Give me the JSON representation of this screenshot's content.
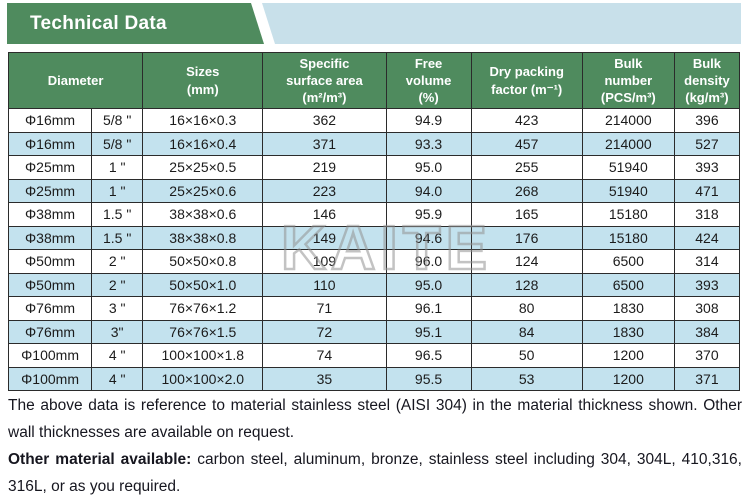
{
  "banner": {
    "title": "Technical Data"
  },
  "colors": {
    "header_green": "#4f8b5e",
    "row_blue": "#c3e2ee",
    "banner_blue": "#c8e0ea",
    "border": "#2b2b2b"
  },
  "watermark": "KAITE",
  "table": {
    "headers": {
      "diameter": "Diameter",
      "sizes": "Sizes\n(mm)",
      "specific_surface_area": "Specific\nsurface area\n(m²/m³)",
      "free_volume": "Free\nvolume\n(%)",
      "dry_packing_factor": "Dry packing\nfactor (m⁻¹)",
      "bulk_number": "Bulk\nnumber\n(PCS/m³)",
      "bulk_density": "Bulk\ndensity\n(kg/m³)"
    },
    "rows": [
      [
        "Φ16mm",
        "5/8 \"",
        "16×16×0.3",
        "362",
        "94.9",
        "423",
        "214000",
        "396"
      ],
      [
        "Φ16mm",
        "5/8 \"",
        "16×16×0.4",
        "371",
        "93.3",
        "457",
        "214000",
        "527"
      ],
      [
        "Φ25mm",
        "1 \"",
        "25×25×0.5",
        "219",
        "95.0",
        "255",
        "51940",
        "393"
      ],
      [
        "Φ25mm",
        "1 \"",
        "25×25×0.6",
        "223",
        "94.0",
        "268",
        "51940",
        "471"
      ],
      [
        "Φ38mm",
        "1.5 \"",
        "38×38×0.6",
        "146",
        "95.9",
        "165",
        "15180",
        "318"
      ],
      [
        "Φ38mm",
        "1.5 \"",
        "38×38×0.8",
        "149",
        "94.6",
        "176",
        "15180",
        "424"
      ],
      [
        "Φ50mm",
        "2 \"",
        "50×50×0.8",
        "109",
        "96.0",
        "124",
        "6500",
        "314"
      ],
      [
        "Φ50mm",
        "2 \"",
        "50×50×1.0",
        "110",
        "95.0",
        "128",
        "6500",
        "393"
      ],
      [
        "Φ76mm",
        "3 \"",
        "76×76×1.2",
        "71",
        "96.1",
        "80",
        "1830",
        "308"
      ],
      [
        "Φ76mm",
        "3\"",
        "76×76×1.5",
        "72",
        "95.1",
        "84",
        "1830",
        "384"
      ],
      [
        "Φ100mm",
        "4 \"",
        "100×100×1.8",
        "74",
        "96.5",
        "50",
        "1200",
        "370"
      ],
      [
        "Φ100mm",
        "4 \"",
        "100×100×2.0",
        "35",
        "95.5",
        "53",
        "1200",
        "371"
      ]
    ]
  },
  "notes": {
    "paragraph1": "The above data is reference to material stainless steel (AISI 304) in the material thickness shown. Other wall thicknesses are available on request.",
    "materials_label": "Other material available:",
    "materials_text": "carbon steel, aluminum, bronze, stainless steel including 304, 304L, 410,316, 316L, or as you required."
  }
}
